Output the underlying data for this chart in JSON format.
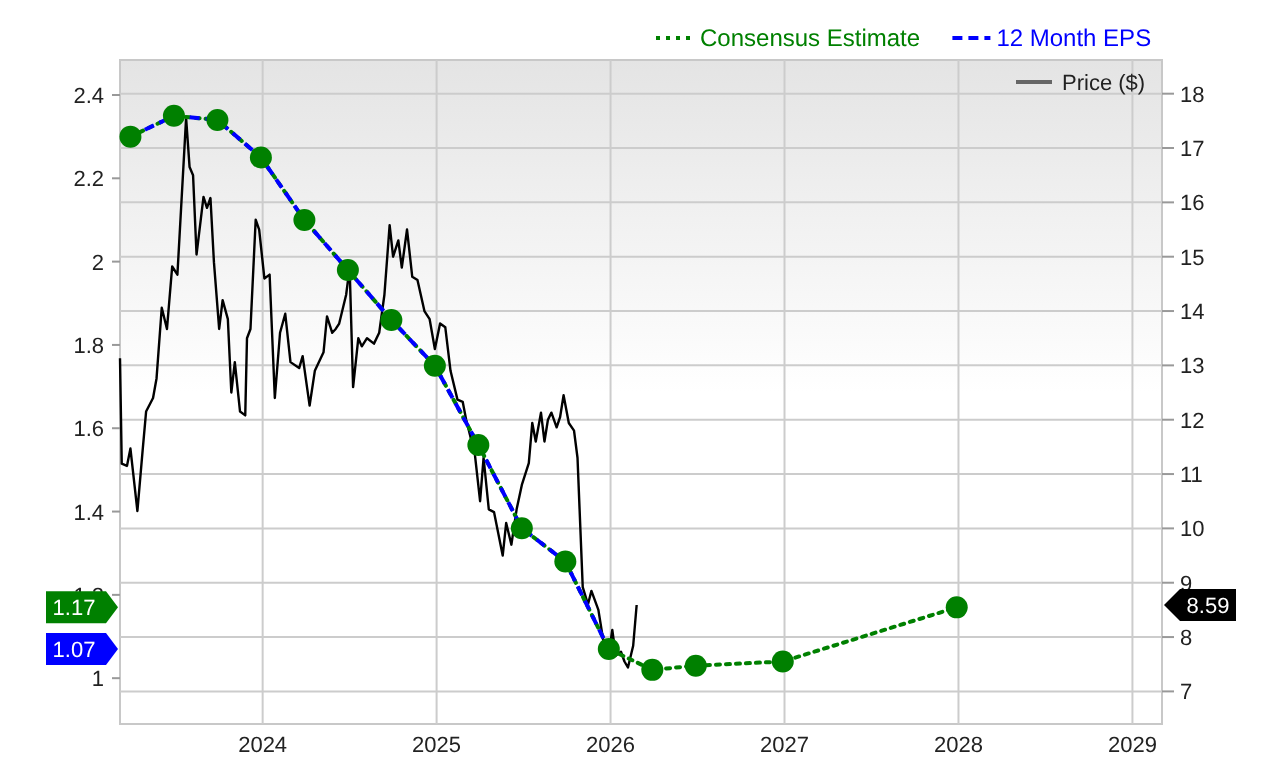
{
  "chart_data": {
    "type": "line",
    "x": [
      2023.24,
      2023.49,
      2023.74,
      2023.99,
      2024.24,
      2024.49,
      2024.74,
      2024.99,
      2025.24,
      2025.49,
      2025.74,
      2025.99,
      2026.24,
      2026.49,
      2026.99,
      2027.99
    ],
    "series": [
      {
        "name": "Price ($)",
        "color": "#000000",
        "axis": "y2",
        "line_style": "solid",
        "marker": "none",
        "x": [
          2023.18,
          2023.19,
          2023.22,
          2023.24,
          2023.28,
          2023.31,
          2023.33,
          2023.37,
          2023.39,
          2023.42,
          2023.45,
          2023.48,
          2023.51,
          2023.56,
          2023.58,
          2023.6,
          2023.62,
          2023.66,
          2023.68,
          2023.7,
          2023.72,
          2023.75,
          2023.77,
          2023.8,
          2023.82,
          2023.84,
          2023.87,
          2023.9,
          2023.91,
          2023.93,
          2023.96,
          2023.98,
          2024.01,
          2024.04,
          2024.07,
          2024.1,
          2024.13,
          2024.16,
          2024.21,
          2024.23,
          2024.27,
          2024.3,
          2024.35,
          2024.37,
          2024.4,
          2024.42,
          2024.44,
          2024.48,
          2024.5,
          2024.52,
          2024.55,
          2024.57,
          2024.6,
          2024.64,
          2024.67,
          2024.7,
          2024.73,
          2024.75,
          2024.78,
          2024.8,
          2024.83,
          2024.86,
          2024.89,
          2024.93,
          2024.96,
          2024.99,
          2025.02,
          2025.05,
          2025.08,
          2025.12,
          2025.15,
          2025.17,
          2025.22,
          2025.25,
          2025.27,
          2025.3,
          2025.33,
          2025.38,
          2025.4,
          2025.43,
          2025.46,
          2025.49,
          2025.53,
          2025.55,
          2025.57,
          2025.6,
          2025.62,
          2025.64,
          2025.66,
          2025.69,
          2025.71,
          2025.73,
          2025.76,
          2025.79,
          2025.81,
          2025.84,
          2025.87,
          2025.89,
          2025.93,
          2025.96,
          2025.99,
          2026.01,
          2026.03,
          2026.06,
          2026.08,
          2026.1,
          2026.13,
          2026.15
        ],
        "values": [
          13.13,
          11.19,
          11.15,
          11.47,
          10.32,
          11.43,
          12.15,
          12.4,
          12.76,
          14.06,
          13.67,
          14.82,
          14.67,
          17.55,
          16.65,
          16.5,
          15.04,
          16.1,
          15.9,
          16.08,
          14.9,
          13.67,
          14.2,
          13.85,
          12.5,
          13.06,
          12.15,
          12.08,
          13.5,
          13.67,
          15.68,
          15.5,
          14.6,
          14.67,
          12.4,
          13.6,
          13.95,
          13.06,
          12.95,
          13.17,
          12.26,
          12.9,
          13.24,
          13.9,
          13.6,
          13.67,
          13.77,
          14.3,
          14.8,
          12.6,
          13.5,
          13.35,
          13.5,
          13.4,
          13.6,
          14.3,
          15.58,
          15.0,
          15.3,
          14.8,
          15.5,
          14.63,
          14.57,
          14.0,
          13.85,
          13.3,
          13.77,
          13.7,
          12.9,
          12.37,
          12.33,
          12.0,
          11.36,
          10.5,
          11.3,
          10.35,
          10.3,
          9.5,
          10.1,
          9.7,
          10.35,
          10.8,
          11.2,
          11.94,
          11.6,
          12.13,
          11.6,
          12.0,
          12.13,
          11.86,
          12.05,
          12.45,
          11.94,
          11.8,
          11.3,
          8.92,
          8.6,
          8.85,
          8.5,
          7.9,
          7.7,
          8.13,
          7.66,
          7.73,
          7.55,
          7.44,
          7.84,
          8.59
        ]
      },
      {
        "name": "Consensus Estimate",
        "color": "#008000",
        "line_style": "dotted",
        "marker": "circle",
        "values": [
          2.3,
          2.35,
          2.34,
          2.25,
          2.1,
          1.98,
          1.86,
          1.75,
          1.56,
          1.36,
          1.28,
          1.07,
          1.02,
          1.03,
          1.04,
          1.17
        ]
      },
      {
        "name": "12 Month EPS",
        "color": "#0000ff",
        "line_style": "dashed",
        "marker": "none",
        "values": [
          2.3,
          2.35,
          2.34,
          2.25,
          2.1,
          1.98,
          1.86,
          1.75,
          1.56,
          1.36,
          1.28,
          1.07,
          null,
          null,
          null,
          null
        ]
      }
    ],
    "xlim": [
      2023.18,
      2029.17
    ],
    "xticks": [
      2024,
      2025,
      2026,
      2027,
      2028,
      2029
    ],
    "ylim": [
      0.89,
      2.484
    ],
    "yticks": [
      1,
      1.2,
      1.4,
      1.6,
      1.8,
      2,
      2.2,
      2.4
    ],
    "y2lim": [
      6.4,
      18.62
    ],
    "y2ticks": [
      7,
      8,
      9,
      10,
      11,
      12,
      13,
      14,
      15,
      16,
      17,
      18
    ],
    "annotations": [
      "8.59",
      "1.17",
      "1.07"
    ],
    "grid": true,
    "legend": "top right"
  }
}
